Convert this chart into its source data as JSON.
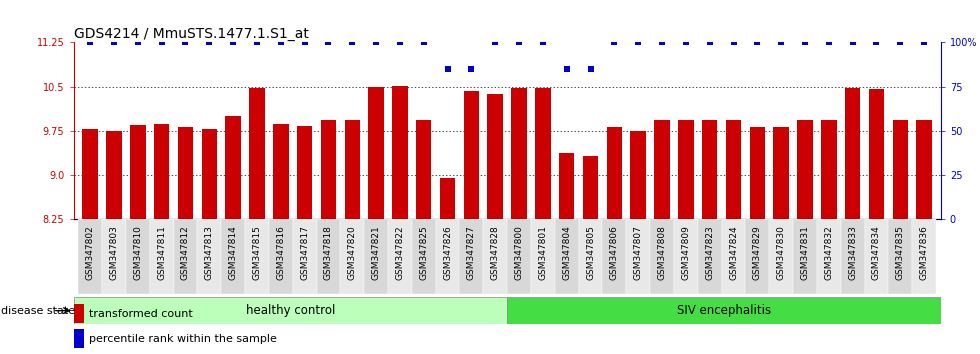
{
  "title": "GDS4214 / MmuSTS.1477.1.S1_at",
  "samples": [
    "GSM347802",
    "GSM347803",
    "GSM347810",
    "GSM347811",
    "GSM347812",
    "GSM347813",
    "GSM347814",
    "GSM347815",
    "GSM347816",
    "GSM347817",
    "GSM347818",
    "GSM347820",
    "GSM347821",
    "GSM347822",
    "GSM347825",
    "GSM347826",
    "GSM347827",
    "GSM347828",
    "GSM347800",
    "GSM347801",
    "GSM347804",
    "GSM347805",
    "GSM347806",
    "GSM347807",
    "GSM347808",
    "GSM347809",
    "GSM347823",
    "GSM347824",
    "GSM347829",
    "GSM347830",
    "GSM347831",
    "GSM347832",
    "GSM347833",
    "GSM347834",
    "GSM347835",
    "GSM347836"
  ],
  "bar_values": [
    9.78,
    9.75,
    9.85,
    9.86,
    9.82,
    9.78,
    10.0,
    10.48,
    9.87,
    9.83,
    9.93,
    9.93,
    10.5,
    10.52,
    9.93,
    8.95,
    10.42,
    10.38,
    10.48,
    10.48,
    9.38,
    9.32,
    9.82,
    9.75,
    9.93,
    9.93,
    9.93,
    9.93,
    9.82,
    9.82,
    9.93,
    9.93,
    10.48,
    10.46,
    9.93,
    9.93
  ],
  "percentile_values": [
    100,
    100,
    100,
    100,
    100,
    100,
    100,
    100,
    100,
    100,
    100,
    100,
    100,
    100,
    100,
    85,
    85,
    100,
    100,
    100,
    85,
    85,
    100,
    100,
    100,
    100,
    100,
    100,
    100,
    100,
    100,
    100,
    100,
    100,
    100,
    100
  ],
  "healthy_count": 18,
  "ylim_left": [
    8.25,
    11.25
  ],
  "ylim_right": [
    0,
    100
  ],
  "yticks_left": [
    8.25,
    9.0,
    9.75,
    10.5,
    11.25
  ],
  "yticks_right": [
    0,
    25,
    50,
    75,
    100
  ],
  "bar_color": "#cc0000",
  "percentile_color": "#0000cc",
  "healthy_color": "#bbffbb",
  "siv_color": "#44dd44",
  "healthy_label": "healthy control",
  "siv_label": "SIV encephalitis",
  "disease_state_label": "disease state",
  "legend_bar": "transformed count",
  "legend_pct": "percentile rank within the sample",
  "title_fontsize": 10,
  "tick_fontsize": 7,
  "label_fontsize": 8.5,
  "bg_color": "#ffffff"
}
